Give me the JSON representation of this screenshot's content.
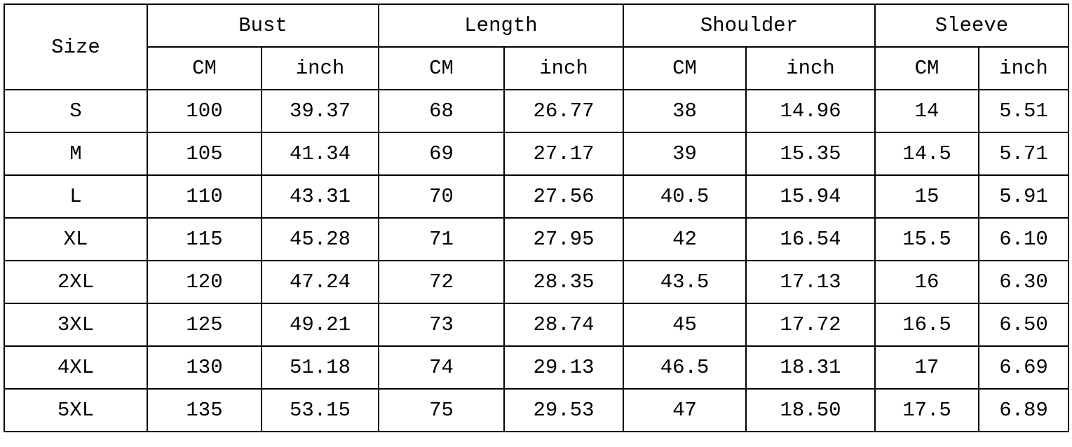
{
  "table": {
    "size_label": "Size",
    "groups": [
      "Bust",
      "Length",
      "Shoulder",
      "Sleeve"
    ],
    "units": [
      "CM",
      "inch",
      "CM",
      "inch",
      "CM",
      "inch",
      "CM",
      "inch"
    ],
    "rows": [
      [
        "S",
        "100",
        "39.37",
        "68",
        "26.77",
        "38",
        "14.96",
        "14",
        "5.51"
      ],
      [
        "M",
        "105",
        "41.34",
        "69",
        "27.17",
        "39",
        "15.35",
        "14.5",
        "5.71"
      ],
      [
        "L",
        "110",
        "43.31",
        "70",
        "27.56",
        "40.5",
        "15.94",
        "15",
        "5.91"
      ],
      [
        "XL",
        "115",
        "45.28",
        "71",
        "27.95",
        "42",
        "16.54",
        "15.5",
        "6.10"
      ],
      [
        "2XL",
        "120",
        "47.24",
        "72",
        "28.35",
        "43.5",
        "17.13",
        "16",
        "6.30"
      ],
      [
        "3XL",
        "125",
        "49.21",
        "73",
        "28.74",
        "45",
        "17.72",
        "16.5",
        "6.50"
      ],
      [
        "4XL",
        "130",
        "51.18",
        "74",
        "29.13",
        "46.5",
        "18.31",
        "17",
        "6.69"
      ],
      [
        "5XL",
        "135",
        "53.15",
        "75",
        "29.53",
        "47",
        "18.50",
        "17.5",
        "6.89"
      ]
    ]
  }
}
